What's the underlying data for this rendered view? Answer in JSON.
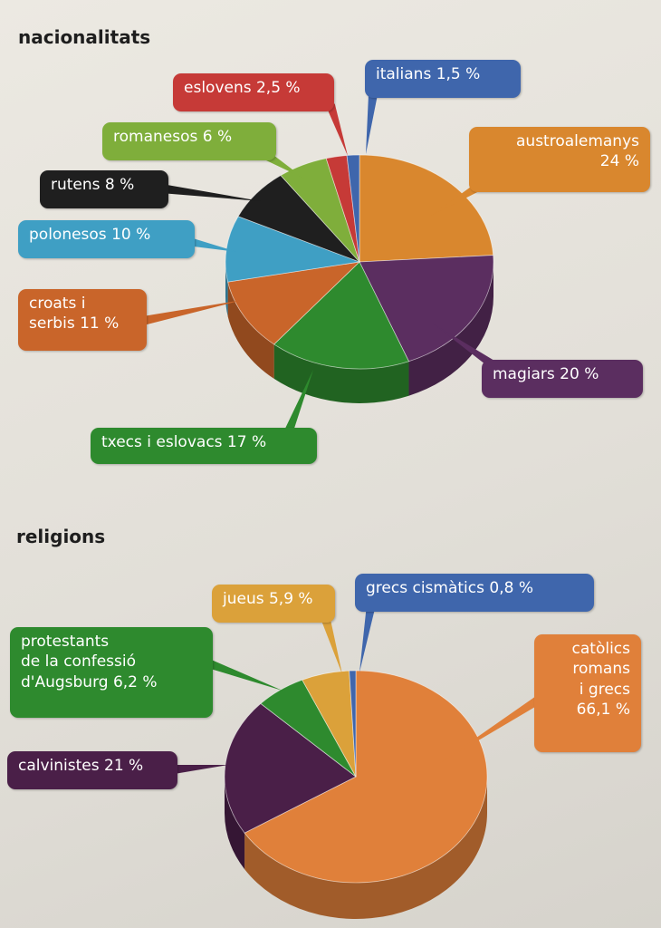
{
  "headings": {
    "nationalities": "nacionalitats",
    "religions": "religions"
  },
  "chart_data": [
    {
      "type": "pie",
      "title": "nacionalitats",
      "unit": "%",
      "slices": [
        {
          "name": "austroalemanys",
          "value": 24,
          "label": "austroalemanys\n24 %",
          "color": "#d9872e"
        },
        {
          "name": "magiars",
          "value": 20,
          "label": "magiars 20 %",
          "color": "#5b2e60"
        },
        {
          "name": "txecs i eslovacs",
          "value": 17,
          "label": "txecs i eslovacs 17 %",
          "color": "#2e8a2e"
        },
        {
          "name": "croats i serbis",
          "value": 11,
          "label": "croats i\nserbis 11 %",
          "color": "#c9652a"
        },
        {
          "name": "polonesos",
          "value": 10,
          "label": "polonesos 10 %",
          "color": "#3f9fc4"
        },
        {
          "name": "rutens",
          "value": 8,
          "label": "rutens 8 %",
          "color": "#1f1f1f"
        },
        {
          "name": "romanesos",
          "value": 6,
          "label": "romanesos 6 %",
          "color": "#7fae3b"
        },
        {
          "name": "eslovens",
          "value": 2.5,
          "label": "eslovens 2,5 %",
          "color": "#c63a37"
        },
        {
          "name": "italians",
          "value": 1.5,
          "label": "italians 1,5 %",
          "color": "#3f66ac"
        }
      ]
    },
    {
      "type": "pie",
      "title": "religions",
      "unit": "%",
      "slices": [
        {
          "name": "catòlics romans i grecs",
          "value": 66.1,
          "label": "catòlics\nromans\ni grecs\n66,1 %",
          "color": "#e0803a"
        },
        {
          "name": "calvinistes",
          "value": 21,
          "label": "calvinistes 21 %",
          "color": "#4a1f48"
        },
        {
          "name": "protestants de la confessió d'Augsburg",
          "value": 6.2,
          "label": "protestants\nde la confessió\nd'Augsburg 6,2 %",
          "color": "#2e8a2e"
        },
        {
          "name": "jueus",
          "value": 5.9,
          "label": "jueus 5,9 %",
          "color": "#dba13a"
        },
        {
          "name": "grecs cismàtics",
          "value": 0.8,
          "label": "grecs cismàtics 0,8 %",
          "color": "#3f66ac"
        }
      ]
    }
  ]
}
